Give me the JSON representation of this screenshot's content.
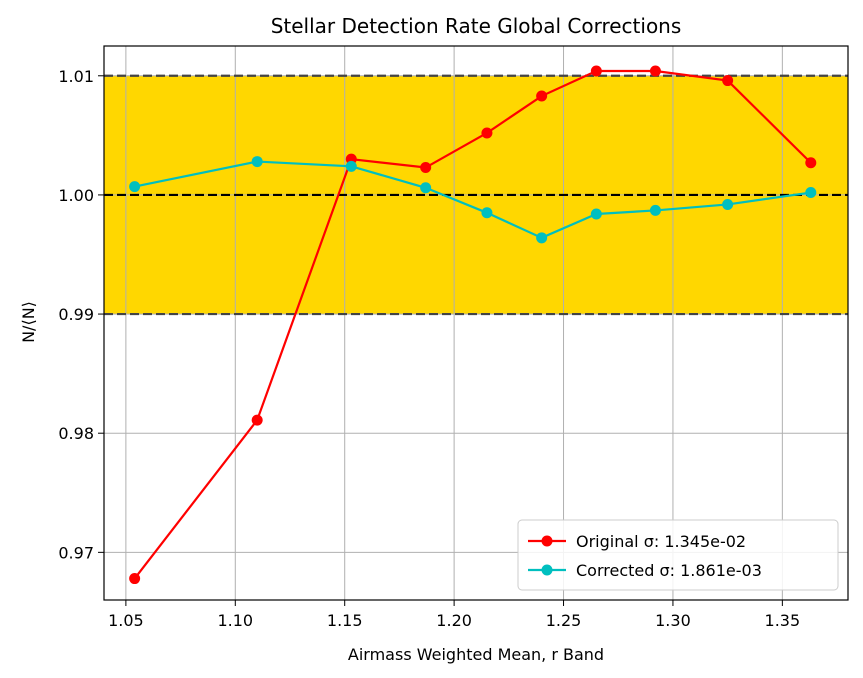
{
  "chart_data": {
    "type": "line",
    "title": "Stellar Detection Rate Global Corrections",
    "xlabel": "Airmass Weighted Mean, r Band",
    "ylabel": "N/⟨N⟩",
    "xlim": [
      1.04,
      1.38
    ],
    "ylim": [
      0.966,
      1.0125
    ],
    "xticks": [
      1.05,
      1.1,
      1.15,
      1.2,
      1.25,
      1.3,
      1.35
    ],
    "xtick_labels": [
      "1.05",
      "1.10",
      "1.15",
      "1.20",
      "1.25",
      "1.30",
      "1.35"
    ],
    "yticks": [
      0.97,
      0.98,
      0.99,
      1.0,
      1.01
    ],
    "ytick_labels": [
      "0.97",
      "0.98",
      "0.99",
      "1.00",
      "1.01"
    ],
    "grid": true,
    "legend_position": "lower-right",
    "band": {
      "y0": 0.99,
      "y1": 1.01,
      "color": "#ffd700"
    },
    "reference_lines": [
      {
        "y": 1.01,
        "color": "#444444"
      },
      {
        "y": 1.0,
        "color": "#000000"
      },
      {
        "y": 0.99,
        "color": "#444444"
      }
    ],
    "series": [
      {
        "name": "Original σ: 1.345e-02",
        "color": "#ff0000",
        "x": [
          1.054,
          1.11,
          1.153,
          1.187,
          1.215,
          1.24,
          1.265,
          1.292,
          1.325,
          1.363
        ],
        "y": [
          0.9678,
          0.9811,
          1.003,
          1.0023,
          1.0052,
          1.0083,
          1.0104,
          1.0104,
          1.0096,
          1.0027
        ]
      },
      {
        "name": "Corrected σ: 1.861e-03",
        "color": "#00bfbf",
        "x": [
          1.054,
          1.11,
          1.153,
          1.187,
          1.215,
          1.24,
          1.265,
          1.292,
          1.325,
          1.363
        ],
        "y": [
          1.0007,
          1.0028,
          1.0024,
          1.0006,
          0.9985,
          0.9964,
          0.9984,
          0.9987,
          0.9992,
          1.0002
        ]
      }
    ]
  }
}
